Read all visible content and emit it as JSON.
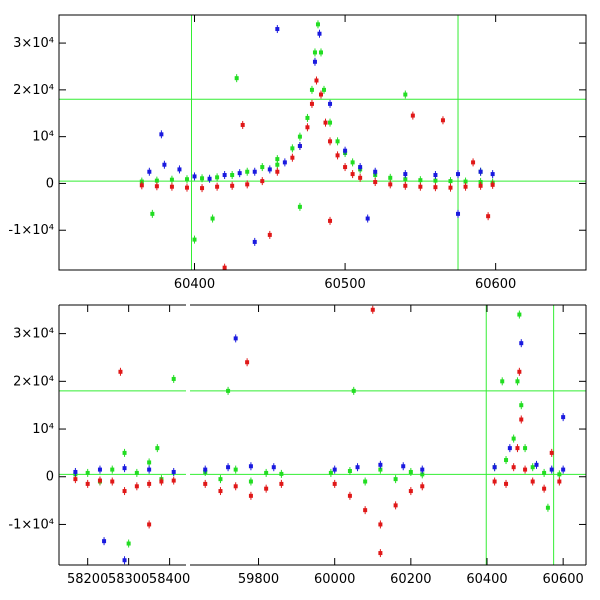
{
  "colors": {
    "green": "#22dd22",
    "red": "#e01818",
    "blue": "#1a1adf",
    "refline": "#33ee33",
    "axis": "#000000"
  },
  "chart_data": [
    {
      "type": "scatter",
      "panel": "top",
      "title": "",
      "xlabel": "",
      "ylabel": "",
      "xlim": [
        60310,
        60660
      ],
      "ylim": [
        -18500,
        36000
      ],
      "x_ticks": [
        60400,
        60500,
        60600
      ],
      "x_tick_labels": [
        "60400",
        "60500",
        "60600"
      ],
      "y_ticks": [
        -10000,
        0,
        10000,
        20000,
        30000
      ],
      "y_tick_labels": [
        "-1×10⁴",
        "0",
        "10⁴",
        "2×10⁴",
        "3×10⁴"
      ],
      "reference_lines": {
        "horizontal": [
          500,
          18000
        ],
        "vertical": [
          60398,
          60575
        ]
      },
      "series": [
        {
          "color": "green",
          "x": [
            60365,
            60375,
            60385,
            60395,
            60405,
            60415,
            60425,
            60435,
            60445,
            60455,
            60465,
            60470,
            60475,
            60478,
            60480,
            60482,
            60484,
            60486,
            60490,
            60495,
            60500,
            60505,
            60510,
            60520,
            60530,
            60540,
            60550,
            60560,
            60570,
            60580,
            60590,
            60598,
            60372,
            60412,
            60428,
            60455,
            60540,
            60590,
            60470,
            60400
          ],
          "y": [
            400,
            600,
            800,
            900,
            1100,
            1300,
            1800,
            2500,
            3500,
            5200,
            7500,
            10000,
            14000,
            20000,
            28000,
            34000,
            28000,
            20000,
            13000,
            9000,
            6500,
            4500,
            3000,
            1800,
            1200,
            900,
            700,
            600,
            500,
            400,
            300,
            200,
            -6500,
            -7500,
            22500,
            4000,
            19000,
            2500,
            -5000,
            -12000
          ]
        },
        {
          "color": "red",
          "x": [
            60365,
            60375,
            60385,
            60395,
            60405,
            60415,
            60425,
            60435,
            60445,
            60455,
            60465,
            60470,
            60475,
            60478,
            60481,
            60484,
            60487,
            60490,
            60495,
            60500,
            60505,
            60510,
            60520,
            60530,
            60540,
            60550,
            60560,
            60570,
            60580,
            60590,
            60598,
            60432,
            60450,
            60490,
            60545,
            60565,
            60585,
            60595,
            60420
          ],
          "y": [
            -400,
            -600,
            -700,
            -900,
            -1000,
            -700,
            -500,
            -200,
            500,
            2500,
            5500,
            8000,
            12000,
            17000,
            22000,
            19000,
            13000,
            9000,
            6000,
            3500,
            2000,
            1200,
            300,
            -200,
            -500,
            -700,
            -800,
            -900,
            -700,
            -500,
            -300,
            12500,
            -11000,
            -8000,
            14500,
            13500,
            4500,
            -7000,
            -18000
          ]
        },
        {
          "color": "blue",
          "x": [
            60370,
            60380,
            60390,
            60400,
            60410,
            60420,
            60430,
            60440,
            60450,
            60460,
            60470,
            60480,
            60483,
            60490,
            60500,
            60510,
            60520,
            60540,
            60560,
            60575,
            60590,
            60598,
            60378,
            60455,
            60575,
            60440,
            60515
          ],
          "y": [
            2500,
            4000,
            3000,
            1500,
            1000,
            1800,
            2200,
            2500,
            3000,
            4500,
            8000,
            26000,
            32000,
            17000,
            7000,
            3500,
            2500,
            2000,
            1800,
            2000,
            2500,
            2000,
            10500,
            33000,
            -6500,
            -12500,
            -7500
          ]
        }
      ]
    },
    {
      "type": "scatter",
      "panel": "bottom",
      "title": "",
      "xlabel": "",
      "ylabel": "",
      "broken_axis": true,
      "segments": [
        {
          "xlim": [
            58130,
            58440
          ],
          "x_ticks": [
            58200,
            58300,
            58400
          ],
          "x_tick_labels": [
            "58200",
            "58300",
            "58400"
          ]
        },
        {
          "xlim": [
            59620,
            60660
          ],
          "x_ticks": [
            59800,
            60000,
            60200,
            60400,
            60600
          ],
          "x_tick_labels": [
            "59800",
            "60000",
            "60200",
            "60400",
            "60600"
          ]
        }
      ],
      "ylim": [
        -18500,
        36000
      ],
      "y_ticks": [
        -10000,
        0,
        10000,
        20000,
        30000
      ],
      "y_tick_labels": [
        "-1×10⁴",
        "0",
        "10⁴",
        "2×10⁴",
        "3×10⁴"
      ],
      "reference_lines": {
        "horizontal": [
          500,
          18000
        ],
        "vertical": [
          60398,
          60575
        ]
      },
      "series": [
        {
          "color": "green",
          "x": [
            58170,
            58200,
            58230,
            58260,
            58290,
            58320,
            58350,
            58380,
            58410,
            58300,
            58370,
            59660,
            59700,
            59740,
            59780,
            59820,
            59860,
            59720,
            59990,
            60040,
            60080,
            60120,
            60160,
            60200,
            60230,
            60050,
            60420,
            60450,
            60470,
            60480,
            60485,
            60490,
            60500,
            60520,
            60550,
            60590,
            60560,
            60440
          ],
          "y": [
            500,
            800,
            -1000,
            1500,
            5000,
            800,
            3000,
            -500,
            20500,
            -14000,
            6000,
            1000,
            -500,
            1500,
            -1000,
            800,
            600,
            18000,
            800,
            1200,
            -1000,
            1500,
            -500,
            1000,
            500,
            18000,
            2000,
            3500,
            8000,
            20000,
            34000,
            15000,
            6000,
            2000,
            800,
            500,
            -6500,
            20000
          ]
        },
        {
          "color": "red",
          "x": [
            58170,
            58200,
            58230,
            58260,
            58290,
            58320,
            58350,
            58380,
            58410,
            58280,
            58350,
            59660,
            59700,
            59740,
            59780,
            59820,
            59860,
            59770,
            60000,
            60040,
            60080,
            60120,
            60160,
            60200,
            60230,
            60100,
            60120,
            60420,
            60450,
            60470,
            60480,
            60485,
            60490,
            60500,
            60520,
            60550,
            60590,
            60570
          ],
          "y": [
            -500,
            -1500,
            -800,
            -1000,
            -3000,
            -2000,
            -1500,
            -1000,
            -800,
            22000,
            -10000,
            -1500,
            -3000,
            -2000,
            -4000,
            -2500,
            -1500,
            24000,
            -1500,
            -4000,
            -7000,
            -10000,
            -6000,
            -3000,
            -2000,
            35000,
            -16000,
            -1000,
            -1500,
            2000,
            6000,
            22000,
            12000,
            1500,
            -1000,
            -2500,
            -1000,
            5000
          ]
        },
        {
          "color": "blue",
          "x": [
            58170,
            58230,
            58290,
            58350,
            58410,
            58240,
            58290,
            59660,
            59720,
            59780,
            59840,
            59740,
            60000,
            60060,
            60120,
            60180,
            60230,
            60420,
            60460,
            60490,
            60530,
            60570,
            60600,
            60600
          ],
          "y": [
            1000,
            1500,
            1800,
            1500,
            1000,
            -13500,
            -17500,
            1500,
            2000,
            2200,
            2000,
            29000,
            1500,
            2000,
            2500,
            2200,
            1500,
            2000,
            6000,
            28000,
            2500,
            1500,
            1500,
            12500
          ]
        }
      ]
    }
  ]
}
